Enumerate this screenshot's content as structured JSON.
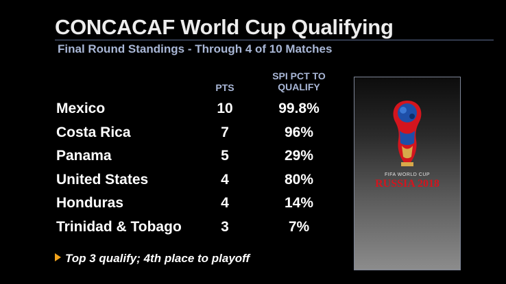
{
  "header": {
    "title": "CONCACAF World Cup Qualifying",
    "subtitle": "Final Round Standings - Through 4 of 10 Matches"
  },
  "table": {
    "columns": {
      "pts": "PTS",
      "pct_line1": "SPI PCT TO",
      "pct_line2": "QUALIFY"
    },
    "rows": [
      {
        "team": "Mexico",
        "pts": "10",
        "pct": "99.8%"
      },
      {
        "team": "Costa Rica",
        "pts": "7",
        "pct": "96%"
      },
      {
        "team": "Panama",
        "pts": "5",
        "pct": "29%"
      },
      {
        "team": "United States",
        "pts": "4",
        "pct": "80%"
      },
      {
        "team": "Honduras",
        "pts": "4",
        "pct": "14%"
      },
      {
        "team": "Trinidad & Tobago",
        "pts": "3",
        "pct": "7%"
      }
    ]
  },
  "footnote": {
    "text": "Top 3 qualify; 4th place to playoff",
    "bullet_color": "#f2a31b"
  },
  "logo": {
    "caption_small": "FIFA WORLD CUP",
    "caption_large": "RUSSIA 2018",
    "red": "#d3151e",
    "blue": "#1e4fa8",
    "gold": "#d7a94a"
  }
}
